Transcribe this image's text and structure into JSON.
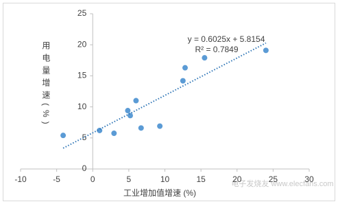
{
  "chart_data": {
    "type": "scatter",
    "x_label": "工业增加值增速 (%)",
    "y_label": "用电量增速(%)",
    "equation": "y = 0.6025x + 5.8154",
    "r_squared": "R² = 0.7849",
    "watermark": "电子发烧友 www.elecfans.com",
    "xlim": [
      -10,
      30
    ],
    "xticks": [
      -10,
      -5,
      0,
      5,
      10,
      15,
      20,
      25,
      30
    ],
    "ylim": [
      0,
      25
    ],
    "yticks": [
      0,
      5,
      10,
      15,
      20,
      25
    ],
    "series": [
      {
        "color": "#5b9bd5",
        "x": [
          -4.1,
          0.95,
          2.95,
          4.86,
          5.2,
          6.0,
          6.7,
          9.3,
          12.5,
          12.8,
          15.5,
          24.0
        ],
        "values": [
          5.4,
          6.2,
          5.75,
          9.4,
          8.6,
          11.0,
          6.6,
          6.9,
          14.2,
          16.3,
          17.9,
          19.1
        ]
      },
      {
        "type": "line",
        "color": "#2e75b6",
        "x": [
          -4.1,
          24.0
        ],
        "values": [
          3.35,
          20.28
        ]
      }
    ]
  }
}
